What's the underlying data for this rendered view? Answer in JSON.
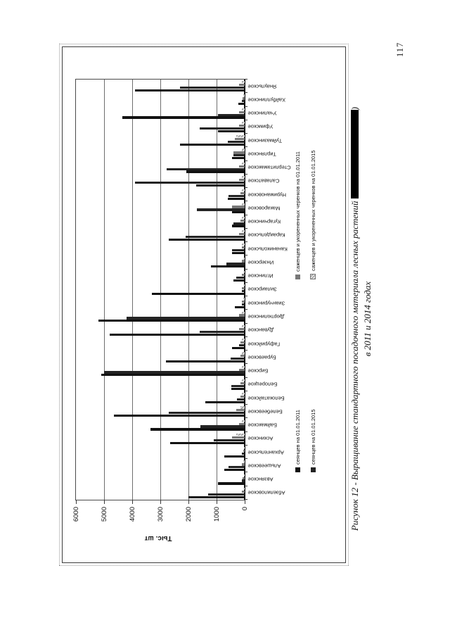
{
  "page": {
    "page_number": "117",
    "caption_line1_prefix": "Рисунок 12 - Выращивание стандартного посадочного материала лесных растений ",
    "caption_line1_suffix": ")",
    "caption_line2": "в 2011 и 2014 годах"
  },
  "chart_data": {
    "type": "bar",
    "orientation_on_page": "chart rotated 90deg counterclockwise on portrait page",
    "grid": true,
    "legend_position": "bottom",
    "value_axis": {
      "title": "Тыс. шт",
      "min": 0,
      "max": 6000,
      "tick_step": 1000,
      "tick_labels": [
        "6000",
        "5000",
        "4000",
        "3000",
        "2000",
        "1000",
        "0"
      ]
    },
    "categories": [
      "Абзелиловское",
      "Авзянское",
      "Альшеевское",
      "Архангельское",
      "Аскинское",
      "Баймакское",
      "Белебеевское",
      "Белокатайское",
      "Белорецкое",
      "Бирское",
      "Бураевское",
      "Гафурийское",
      "Дуванское",
      "Дюртюлинское",
      "Зианчуринское",
      "Зилаирское",
      "Иглинское",
      "Инзерское",
      "Кананикольское",
      "Караидельское",
      "Кугарчинское",
      "Макаровское",
      "Нуримановское",
      "Салаватское",
      "Стерлитамакское",
      "Тирлянское",
      "Туймазинское",
      "Уфимское",
      "Учалинское",
      "Хайбуллинское",
      "Янаульское"
    ],
    "series": [
      {
        "name": "сеянцев на 01.01.2011",
        "color": "#121212",
        "pattern": "solid",
        "values": [
          2000,
          950,
          725,
          725,
          2650,
          3350,
          4650,
          1400,
          480,
          5100,
          2800,
          450,
          4800,
          5200,
          350,
          3300,
          400,
          1200,
          450,
          2700,
          450,
          450,
          600,
          1725,
          2075,
          450,
          2300,
          950,
          4350,
          225,
          3900
        ]
      },
      {
        "name": "сеянцев на 01.01.2015",
        "color": "#242424",
        "pattern": "solid",
        "values": [
          1300,
          100,
          570,
          100,
          1100,
          1575,
          2700,
          275,
          480,
          5000,
          500,
          200,
          1600,
          4200,
          100,
          100,
          300,
          650,
          450,
          2100,
          400,
          1700,
          575,
          3900,
          2775,
          400,
          600,
          1600,
          950,
          100,
          2300
        ]
      },
      {
        "name": "саженцев и укорененных черенков на 01.01.2011",
        "color": "#787878",
        "pattern": "solid",
        "values": [
          100,
          70,
          100,
          50,
          450,
          200,
          300,
          150,
          150,
          200,
          150,
          150,
          200,
          200,
          100,
          100,
          100,
          100,
          100,
          200,
          150,
          450,
          150,
          200,
          200,
          400,
          350,
          200,
          200,
          80,
          200
        ]
      },
      {
        "name": "саженцев и укорененных черенков на 01.01.2015",
        "color": "#c8c8c8",
        "pattern": "hatch",
        "values": [
          50,
          30,
          50,
          30,
          300,
          100,
          150,
          100,
          100,
          100,
          100,
          100,
          100,
          100,
          50,
          50,
          50,
          50,
          100,
          100,
          100,
          100,
          100,
          100,
          100,
          100,
          300,
          100,
          100,
          50,
          100
        ]
      }
    ]
  }
}
